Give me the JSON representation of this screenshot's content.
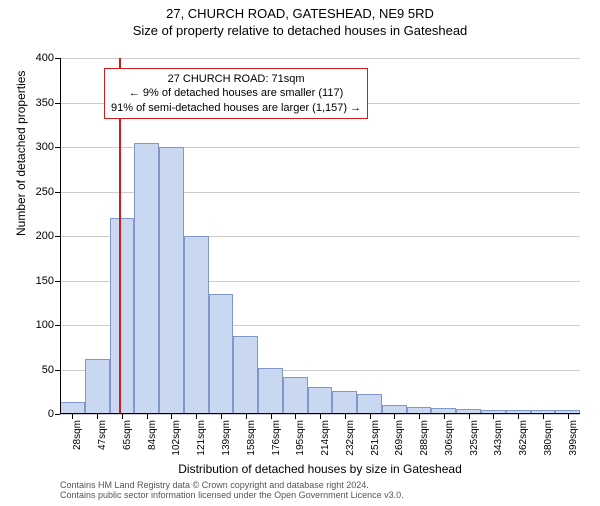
{
  "titles": {
    "main": "27, CHURCH ROAD, GATESHEAD, NE9 5RD",
    "sub": "Size of property relative to detached houses in Gateshead"
  },
  "axes": {
    "ylabel": "Number of detached properties",
    "xlabel": "Distribution of detached houses by size in Gateshead",
    "ylim_max": 400,
    "ytick_step": 50,
    "grid_color": "#cccccc",
    "axis_color": "#000000"
  },
  "bars": {
    "fill_color": "#c9d7f0",
    "border_color": "#7f98c9",
    "categories": [
      "28sqm",
      "47sqm",
      "65sqm",
      "84sqm",
      "102sqm",
      "121sqm",
      "139sqm",
      "158sqm",
      "176sqm",
      "195sqm",
      "214sqm",
      "232sqm",
      "251sqm",
      "269sqm",
      "288sqm",
      "306sqm",
      "325sqm",
      "343sqm",
      "362sqm",
      "380sqm",
      "399sqm"
    ],
    "values": [
      14,
      62,
      220,
      305,
      300,
      200,
      135,
      88,
      52,
      42,
      30,
      26,
      22,
      10,
      8,
      7,
      6,
      5,
      5,
      4,
      5
    ]
  },
  "marker": {
    "color": "#d01c1c",
    "position_index": 2.4
  },
  "annotation": {
    "border_color": "#d01c1c",
    "line1": "27 CHURCH ROAD: 71sqm",
    "line2": "← 9% of detached houses are smaller (117)",
    "line3": "91% of semi-detached houses are larger (1,157) →"
  },
  "footnote": {
    "line1": "Contains HM Land Registry data © Crown copyright and database right 2024.",
    "line2": "Contains public sector information licensed under the Open Government Licence v3.0."
  },
  "style": {
    "background_color": "#ffffff",
    "title_fontsize": 13,
    "label_fontsize": 12,
    "tick_fontsize": 11,
    "xtick_fontsize": 10
  }
}
